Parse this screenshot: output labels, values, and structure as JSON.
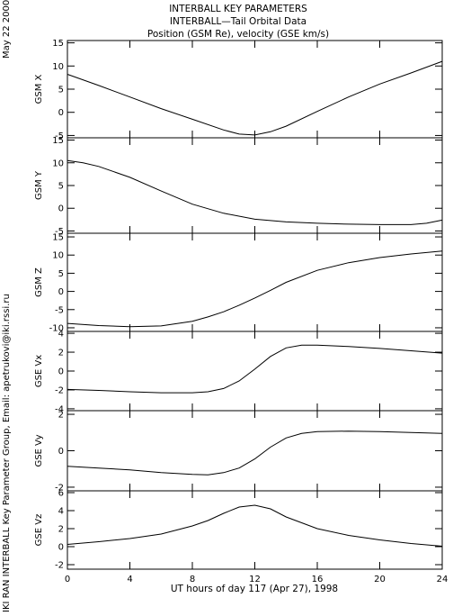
{
  "header": {
    "line1": "INTERBALL KEY PARAMETERS",
    "line2": "INTERBALL—Tail Orbital Data",
    "line3": "Position (GSM Re), velocity (GSE km/s)"
  },
  "side": {
    "date": "May 22 2000",
    "credit": "IKI RAN INTERBALL Key Parameter Group, Email: apetrukovi@iki.rssi.ru"
  },
  "chart_data": {
    "type": "line",
    "title": "INTERBALL KEY PARAMETERS",
    "xlabel": "UT hours of day 117 (Apr 27), 1998",
    "xlim": [
      0,
      24
    ],
    "xticks": [
      "0",
      "4",
      "8",
      "12",
      "16",
      "20",
      "24"
    ],
    "grid": false,
    "panels": [
      {
        "ylabel": "GSM X",
        "ylim": [
          -5.5,
          15.5
        ],
        "yticks": [
          15,
          10,
          5,
          0,
          -5
        ],
        "x": [
          0,
          2,
          4,
          6,
          8,
          10,
          11,
          12,
          13,
          14,
          16,
          18,
          20,
          22,
          24
        ],
        "y": [
          8.2,
          5.8,
          3.3,
          0.8,
          -1.5,
          -3.8,
          -4.7,
          -4.9,
          -4.2,
          -3.0,
          0.2,
          3.3,
          6.1,
          8.5,
          11.0
        ]
      },
      {
        "ylabel": "GSM Y",
        "ylim": [
          -5.5,
          15.5
        ],
        "yticks": [
          15,
          10,
          5,
          0,
          -5
        ],
        "x": [
          0,
          1,
          2,
          4,
          6,
          8,
          10,
          12,
          14,
          16,
          18,
          20,
          22,
          23,
          24
        ],
        "y": [
          10.5,
          10.0,
          9.2,
          6.8,
          3.8,
          0.9,
          -1.1,
          -2.4,
          -3.0,
          -3.3,
          -3.5,
          -3.6,
          -3.6,
          -3.3,
          -2.6
        ]
      },
      {
        "ylabel": "GSM Z",
        "ylim": [
          -11,
          16
        ],
        "yticks": [
          15,
          10,
          5,
          0,
          -5,
          -10
        ],
        "x": [
          0,
          2,
          4,
          6,
          8,
          9,
          10,
          11,
          12,
          13,
          14,
          16,
          18,
          20,
          22,
          24
        ],
        "y": [
          -8.8,
          -9.4,
          -9.7,
          -9.5,
          -8.2,
          -7.0,
          -5.6,
          -3.8,
          -1.8,
          0.3,
          2.5,
          5.8,
          7.9,
          9.3,
          10.3,
          11.1
        ]
      },
      {
        "ylabel": "GSE Vx",
        "ylim": [
          -4.2,
          4.2
        ],
        "yticks": [
          4,
          2,
          0,
          -2,
          -4
        ],
        "x": [
          0,
          2,
          4,
          6,
          8,
          9,
          10,
          11,
          12,
          13,
          14,
          15,
          16,
          18,
          20,
          22,
          24
        ],
        "y": [
          -1.95,
          -2.05,
          -2.2,
          -2.3,
          -2.3,
          -2.2,
          -1.85,
          -1.05,
          0.2,
          1.55,
          2.45,
          2.75,
          2.75,
          2.6,
          2.4,
          2.15,
          1.9
        ]
      },
      {
        "ylabel": "GSE Vy",
        "ylim": [
          -2.2,
          2.2
        ],
        "yticks": [
          2,
          0,
          -2
        ],
        "x": [
          0,
          2,
          4,
          6,
          8,
          9,
          10,
          11,
          12,
          13,
          14,
          15,
          16,
          18,
          20,
          22,
          24
        ],
        "y": [
          -0.85,
          -0.95,
          -1.05,
          -1.2,
          -1.3,
          -1.32,
          -1.2,
          -0.95,
          -0.45,
          0.2,
          0.7,
          0.95,
          1.05,
          1.08,
          1.05,
          1.0,
          0.95
        ]
      },
      {
        "ylabel": "GSE Vz",
        "ylim": [
          -2.5,
          6.2
        ],
        "yticks": [
          6,
          4,
          2,
          0,
          -2
        ],
        "x": [
          0,
          2,
          4,
          6,
          8,
          9,
          10,
          11,
          12,
          13,
          14,
          16,
          18,
          20,
          22,
          24
        ],
        "y": [
          0.25,
          0.55,
          0.9,
          1.4,
          2.3,
          2.9,
          3.7,
          4.4,
          4.6,
          4.2,
          3.3,
          2.0,
          1.25,
          0.75,
          0.35,
          0.05
        ]
      }
    ]
  }
}
